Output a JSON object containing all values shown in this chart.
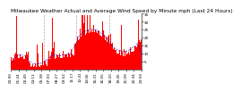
{
  "title": "Milwaukee Weather Actual and Average Wind Speed by Minute mph (Last 24 Hours)",
  "n_points": 1440,
  "ylim": [
    0,
    35
  ],
  "yticks": [
    5,
    10,
    15,
    20,
    25,
    30,
    35
  ],
  "bar_color": "#ff0000",
  "line_color": "#0000cc",
  "background_color": "#ffffff",
  "grid_color": "#aaaaaa",
  "title_fontsize": 4.2,
  "tick_fontsize": 3.0,
  "seed": 77,
  "n_xticks": 18
}
